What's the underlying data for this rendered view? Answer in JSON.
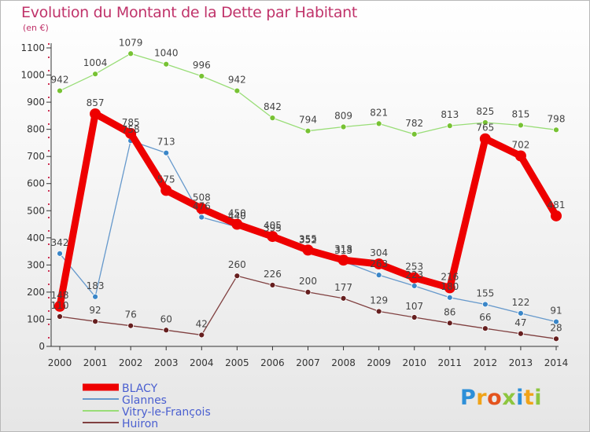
{
  "header": {
    "title": "Evolution du Montant de la Dette par Habitant",
    "unit": "(en €)"
  },
  "logo": {
    "text": "Proxiti",
    "letters": [
      {
        "ch": "P",
        "color": "#2d8fd8"
      },
      {
        "ch": "r",
        "color": "#f0a318"
      },
      {
        "ch": "o",
        "color": "#e4541e"
      },
      {
        "ch": "x",
        "color": "#8dc63f"
      },
      {
        "ch": "i",
        "color": "#2d8fd8"
      },
      {
        "ch": "t",
        "color": "#f0a318"
      },
      {
        "ch": "i",
        "color": "#8dc63f"
      }
    ]
  },
  "chart_data": {
    "type": "line",
    "title": "Evolution du Montant de la Dette par Habitant",
    "xlabel": "",
    "ylabel": "(en €)",
    "ylim": [
      0,
      1100
    ],
    "yticks": [
      0,
      100,
      200,
      300,
      400,
      500,
      600,
      700,
      800,
      900,
      1000,
      1100
    ],
    "grid": false,
    "legend_position": "bottom-left",
    "x": [
      "2000",
      "2001",
      "2002",
      "2003",
      "2004",
      "2005",
      "2006",
      "2007",
      "2008",
      "2009",
      "2010",
      "2011",
      "2012",
      "2013",
      "2014"
    ],
    "series": [
      {
        "name": "BLACY",
        "color": "#ee0000",
        "marker_color": "#ee0000",
        "emphasis": true,
        "values": [
          148,
          857,
          785,
          575,
          508,
          450,
          405,
          355,
          318,
          304,
          253,
          216,
          765,
          702,
          481
        ]
      },
      {
        "name": "Glannes",
        "color": "#6699cc",
        "marker_color": "#3a86c8",
        "emphasis": false,
        "values": [
          342,
          183,
          758,
          713,
          476,
          440,
          395,
          352,
          313,
          263,
          223,
          180,
          155,
          122,
          91
        ]
      },
      {
        "name": "Vitry-le-François",
        "color": "#99dd77",
        "marker_color": "#77c233",
        "emphasis": false,
        "values": [
          942,
          1004,
          1079,
          1040,
          996,
          942,
          842,
          794,
          809,
          821,
          782,
          813,
          825,
          815,
          798
        ]
      },
      {
        "name": "Huiron",
        "color": "#804040",
        "marker_color": "#661f1f",
        "emphasis": false,
        "values": [
          110,
          92,
          76,
          60,
          42,
          260,
          226,
          200,
          177,
          129,
          107,
          86,
          66,
          47,
          28
        ]
      }
    ]
  }
}
